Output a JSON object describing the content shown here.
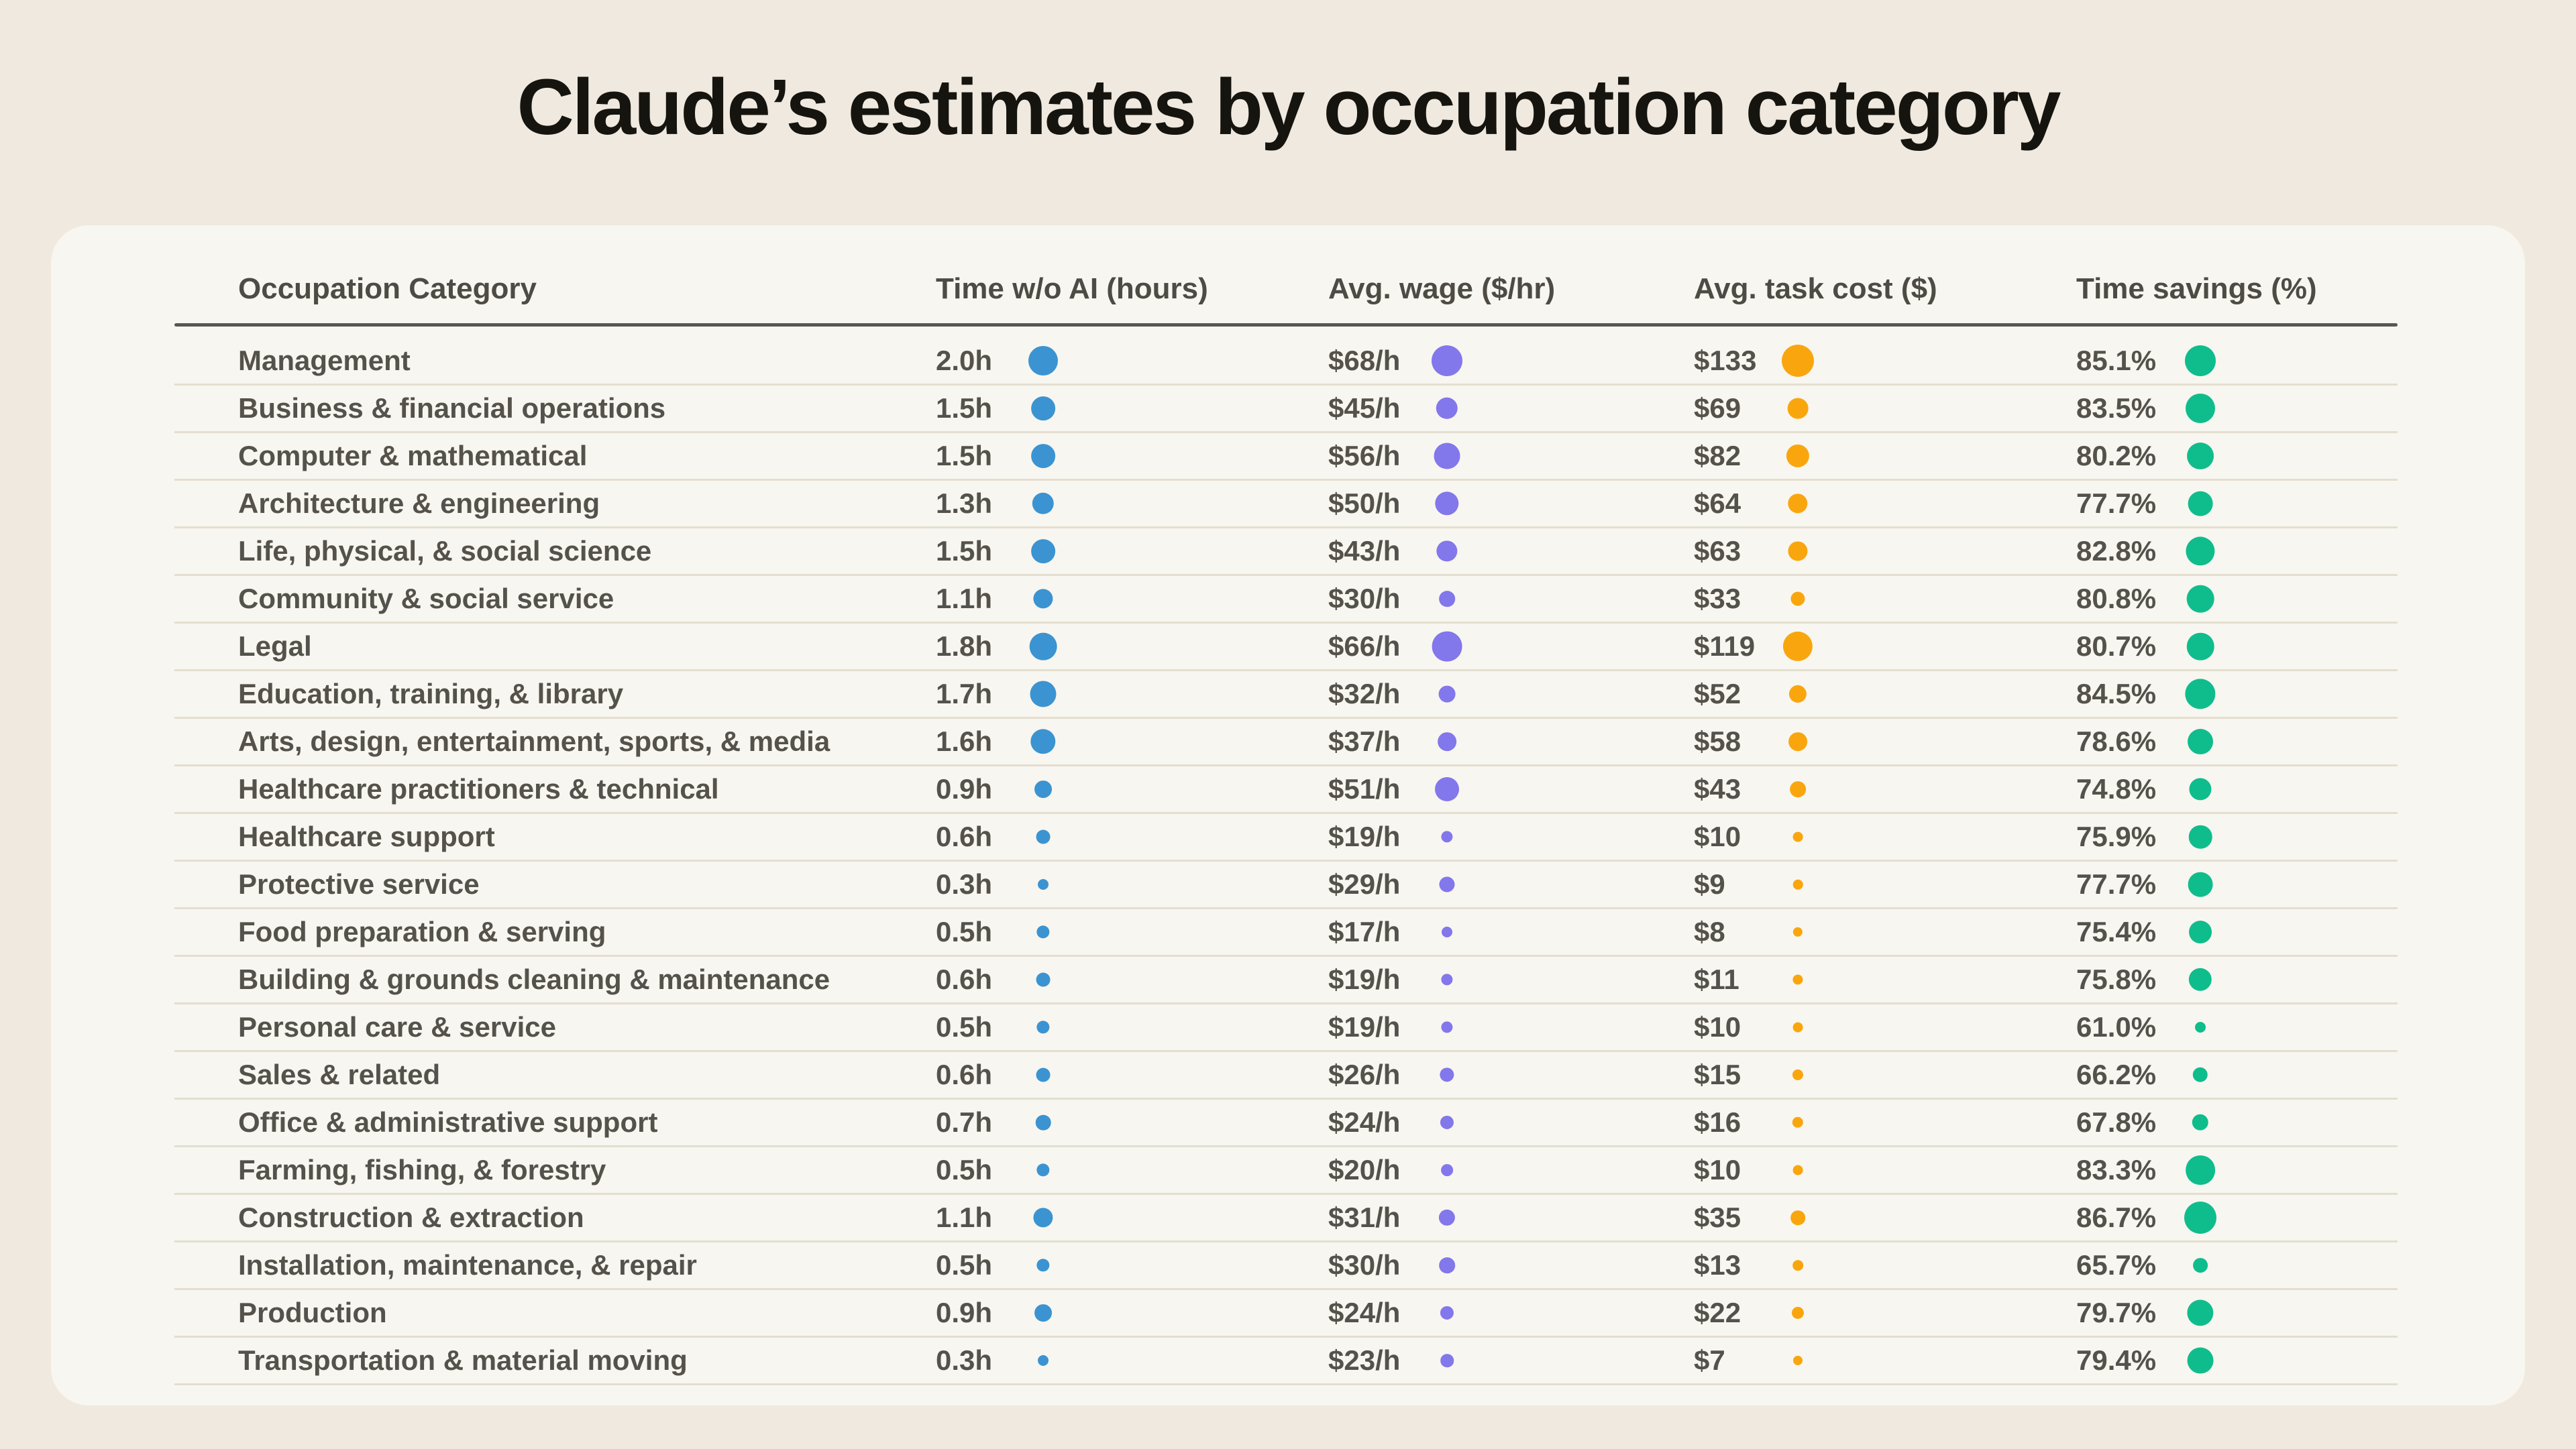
{
  "title": "Claude’s estimates by occupation category",
  "chart_data": {
    "type": "table",
    "title": "Claude’s estimates by occupation category",
    "columns": [
      "Occupation Category",
      "Time w/o AI (hours)",
      "Avg. wage ($/hr)",
      "Avg. task cost ($)",
      "Time savings (%)"
    ],
    "colors": {
      "time": "#3B94D1",
      "wage": "#8277EB",
      "cost": "#F9A60E",
      "savings": "#0FBD8C",
      "card_background": "#F8F6F0",
      "page_background": "#F0E9E0"
    },
    "dot_size_encoding": "dot area scales with column value, min-max per column",
    "rows": [
      {
        "category": "Management",
        "time_hours": 2.0,
        "wage_per_hour": 68,
        "task_cost": 133,
        "time_savings_pct": 85.1
      },
      {
        "category": "Business & financial operations",
        "time_hours": 1.5,
        "wage_per_hour": 45,
        "task_cost": 69,
        "time_savings_pct": 83.5
      },
      {
        "category": "Computer & mathematical",
        "time_hours": 1.5,
        "wage_per_hour": 56,
        "task_cost": 82,
        "time_savings_pct": 80.2
      },
      {
        "category": "Architecture & engineering",
        "time_hours": 1.3,
        "wage_per_hour": 50,
        "task_cost": 64,
        "time_savings_pct": 77.7
      },
      {
        "category": "Life, physical, & social science",
        "time_hours": 1.5,
        "wage_per_hour": 43,
        "task_cost": 63,
        "time_savings_pct": 82.8
      },
      {
        "category": "Community & social service",
        "time_hours": 1.1,
        "wage_per_hour": 30,
        "task_cost": 33,
        "time_savings_pct": 80.8
      },
      {
        "category": "Legal",
        "time_hours": 1.8,
        "wage_per_hour": 66,
        "task_cost": 119,
        "time_savings_pct": 80.7
      },
      {
        "category": "Education, training, & library",
        "time_hours": 1.7,
        "wage_per_hour": 32,
        "task_cost": 52,
        "time_savings_pct": 84.5
      },
      {
        "category": "Arts, design, entertainment, sports, & media",
        "time_hours": 1.6,
        "wage_per_hour": 37,
        "task_cost": 58,
        "time_savings_pct": 78.6
      },
      {
        "category": "Healthcare practitioners & technical",
        "time_hours": 0.9,
        "wage_per_hour": 51,
        "task_cost": 43,
        "time_savings_pct": 74.8
      },
      {
        "category": "Healthcare support",
        "time_hours": 0.6,
        "wage_per_hour": 19,
        "task_cost": 10,
        "time_savings_pct": 75.9
      },
      {
        "category": "Protective service",
        "time_hours": 0.3,
        "wage_per_hour": 29,
        "task_cost": 9,
        "time_savings_pct": 77.7
      },
      {
        "category": "Food preparation & serving",
        "time_hours": 0.5,
        "wage_per_hour": 17,
        "task_cost": 8,
        "time_savings_pct": 75.4
      },
      {
        "category": "Building & grounds cleaning & maintenance",
        "time_hours": 0.6,
        "wage_per_hour": 19,
        "task_cost": 11,
        "time_savings_pct": 75.8
      },
      {
        "category": "Personal care & service",
        "time_hours": 0.5,
        "wage_per_hour": 19,
        "task_cost": 10,
        "time_savings_pct": 61.0
      },
      {
        "category": "Sales & related",
        "time_hours": 0.6,
        "wage_per_hour": 26,
        "task_cost": 15,
        "time_savings_pct": 66.2
      },
      {
        "category": "Office & administrative support",
        "time_hours": 0.7,
        "wage_per_hour": 24,
        "task_cost": 16,
        "time_savings_pct": 67.8
      },
      {
        "category": "Farming, fishing, & forestry",
        "time_hours": 0.5,
        "wage_per_hour": 20,
        "task_cost": 10,
        "time_savings_pct": 83.3
      },
      {
        "category": "Construction & extraction",
        "time_hours": 1.1,
        "wage_per_hour": 31,
        "task_cost": 35,
        "time_savings_pct": 86.7
      },
      {
        "category": "Installation, maintenance, & repair",
        "time_hours": 0.5,
        "wage_per_hour": 30,
        "task_cost": 13,
        "time_savings_pct": 65.7
      },
      {
        "category": "Production",
        "time_hours": 0.9,
        "wage_per_hour": 24,
        "task_cost": 22,
        "time_savings_pct": 79.7
      },
      {
        "category": "Transportation & material moving",
        "time_hours": 0.3,
        "wage_per_hour": 23,
        "task_cost": 7,
        "time_savings_pct": 79.4
      }
    ]
  }
}
